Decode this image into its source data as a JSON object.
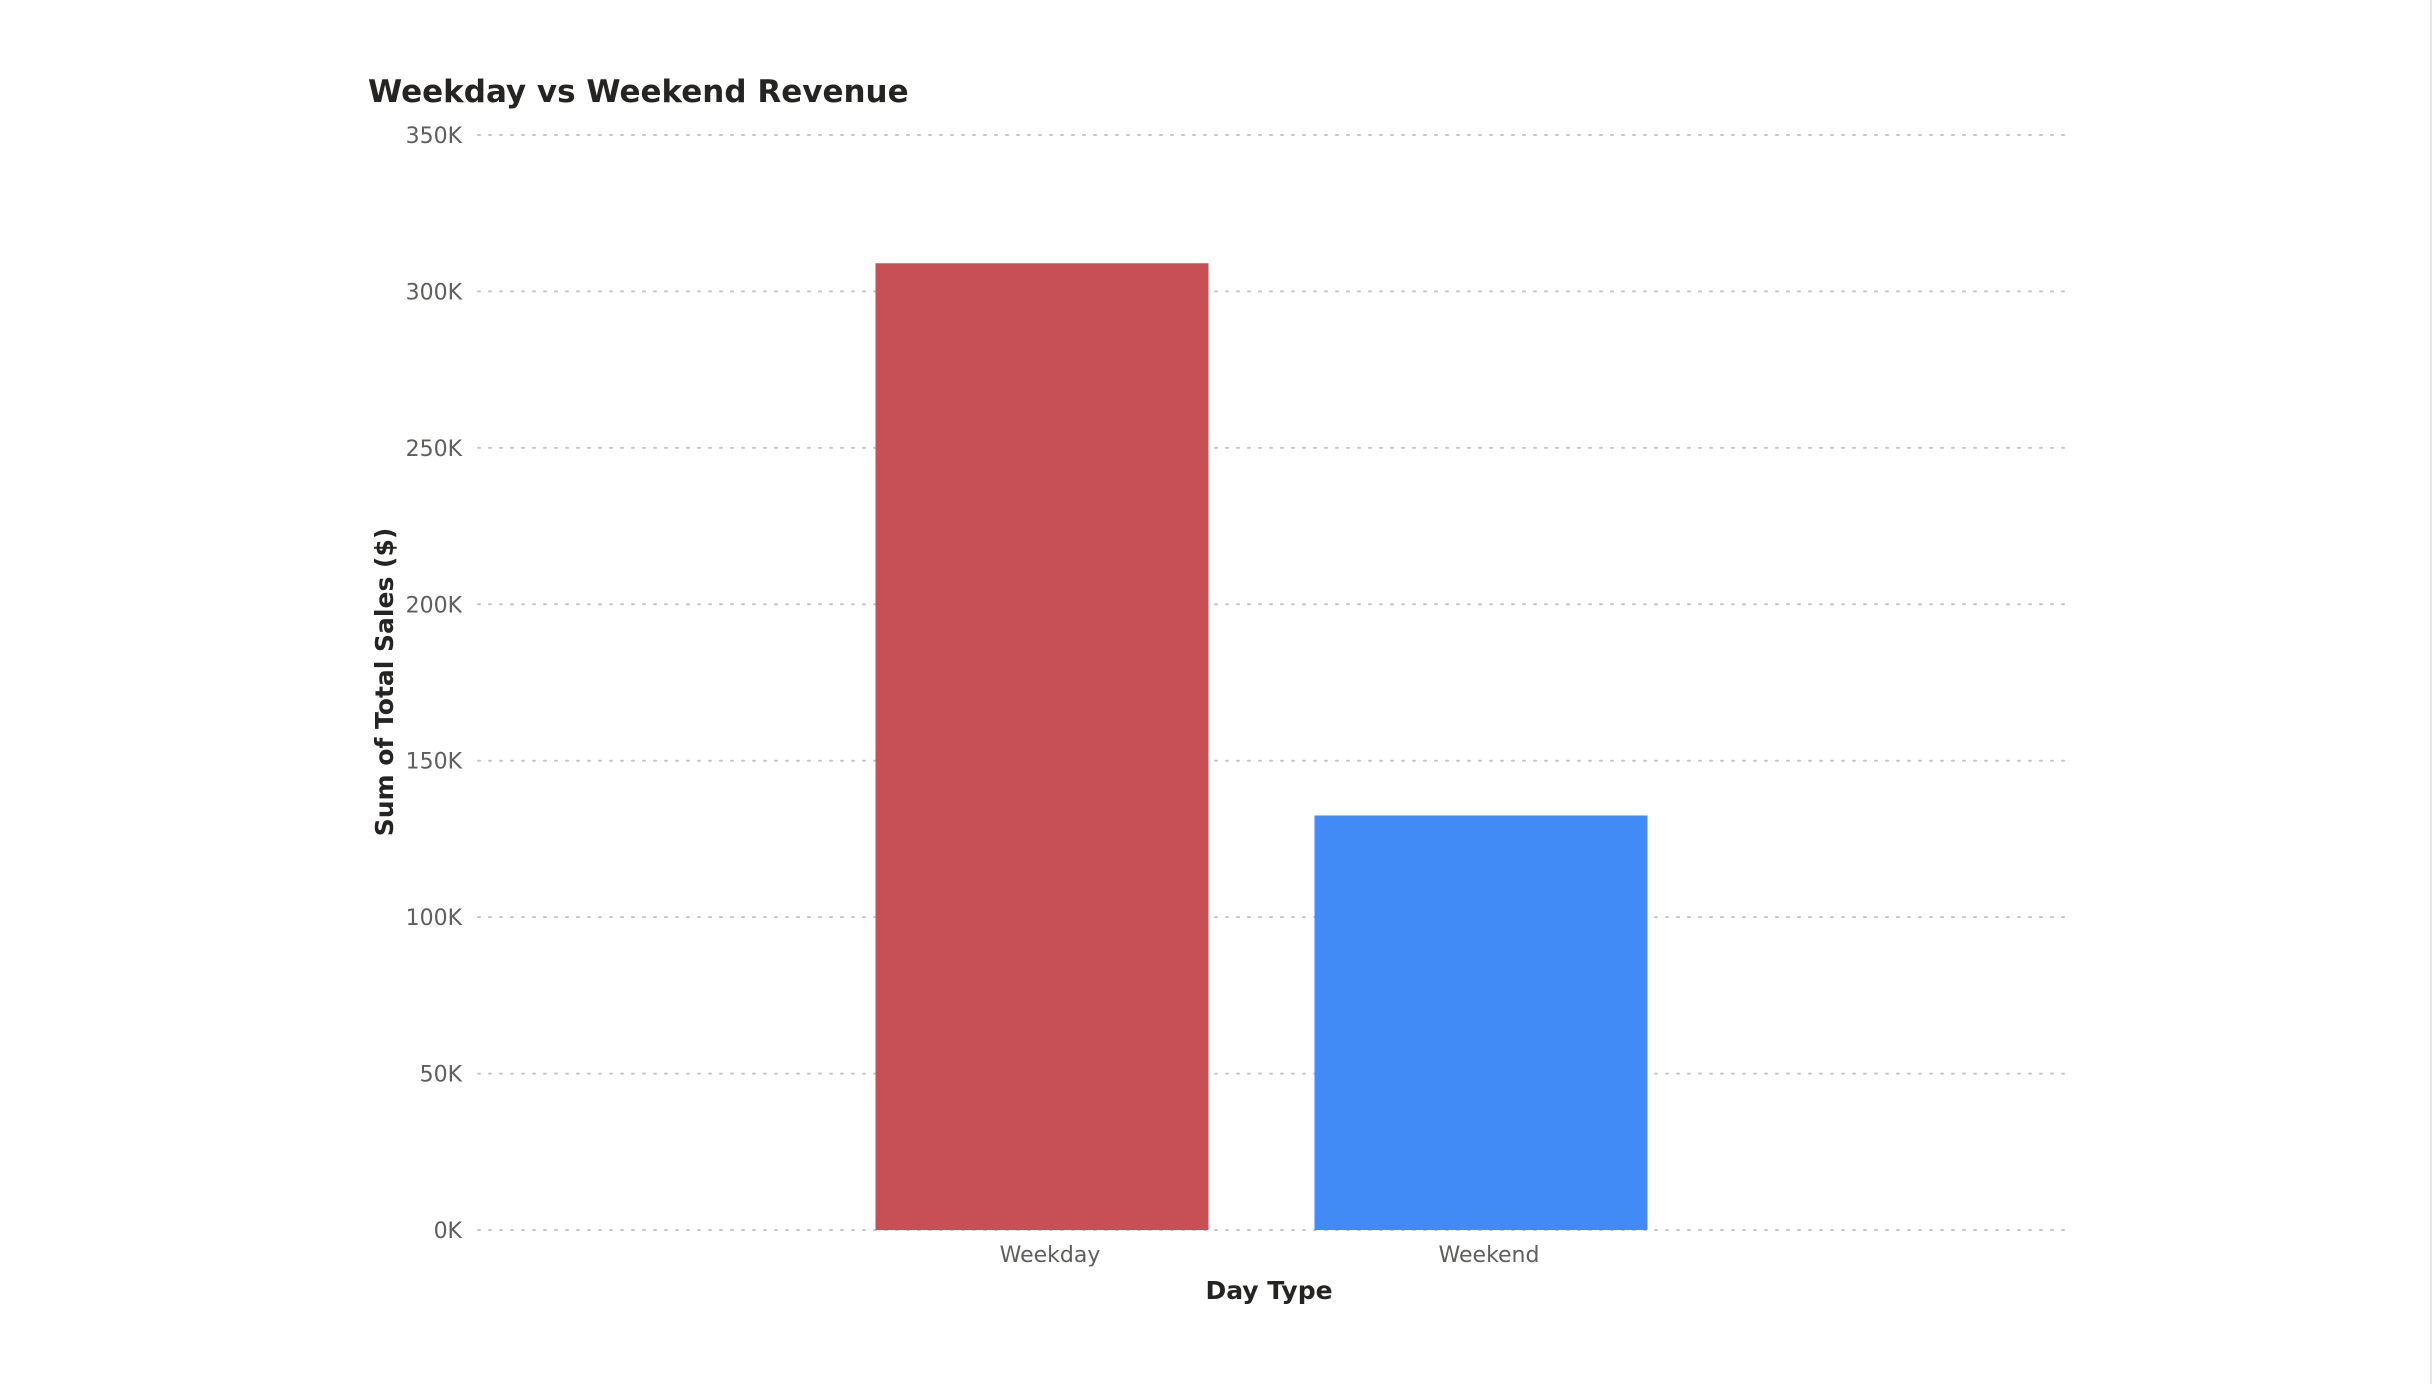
{
  "chart_data": {
    "type": "bar",
    "title": "Weekday vs Weekend Revenue",
    "xlabel": "Day Type",
    "ylabel": "Sum of Total Sales ($)",
    "categories": [
      "Weekday",
      "Weekend"
    ],
    "values": [
      309000,
      132500
    ],
    "colors": [
      "#C65055",
      "#418BF7"
    ],
    "ylim": [
      0,
      350000
    ],
    "yticks": [
      0,
      50000,
      100000,
      150000,
      200000,
      250000,
      300000,
      350000
    ],
    "ytick_labels": [
      "0K",
      "50K",
      "100K",
      "150K",
      "200K",
      "250K",
      "300K",
      "350K"
    ],
    "grid": true,
    "legend": "none"
  }
}
